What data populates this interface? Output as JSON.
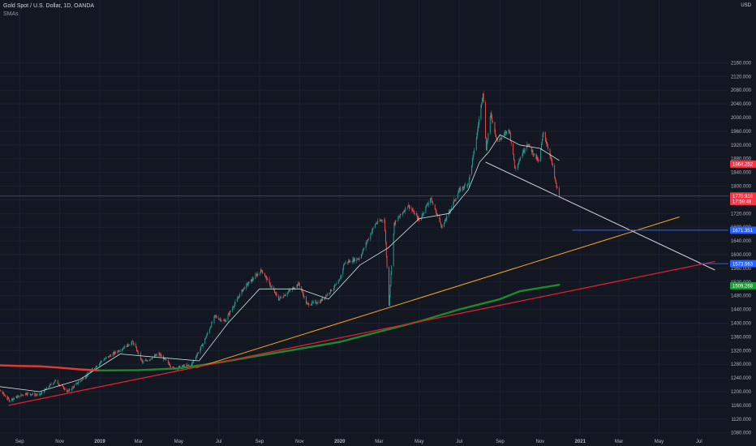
{
  "header": {
    "title": "Gold Spot / U.S. Dollar, 1D, OANDA",
    "indicator": "SMAs",
    "currency": "USD"
  },
  "colors": {
    "background": "#131722",
    "grid": "#1c2030",
    "axis_text": "#b2b5be",
    "candle_up": "#26a69a",
    "candle_down": "#ef5350",
    "sma_fast": "#c8e6e0",
    "sma_red": "#e53935",
    "sma_green": "#1b8a2e",
    "trend_white": "#d1d4dc",
    "trend_orange": "#f5a623",
    "trend_red": "#e01e2b",
    "hline_blue": "#2962ff",
    "label_red": "#f23645",
    "label_blue": "#2962ff",
    "label_green": "#1e9e3a"
  },
  "chart_data": {
    "type": "line",
    "title": "Gold Spot / U.S. Dollar, 1D, OANDA",
    "xlabel": "",
    "ylabel": "",
    "ylim": [
      1070,
      2170
    ],
    "grid": true,
    "x_ticks": [
      "Sep",
      "Nov",
      "2019",
      "Mar",
      "May",
      "Jul",
      "Sep",
      "Nov",
      "2020",
      "Mar",
      "May",
      "Jul",
      "Sep",
      "Nov",
      "2021",
      "Mar",
      "May",
      "Jul"
    ],
    "x_tick_dates": [
      "2018-09",
      "2018-11",
      "2019-01",
      "2019-03",
      "2019-05",
      "2019-07",
      "2019-09",
      "2019-11",
      "2020-01",
      "2020-03",
      "2020-05",
      "2020-07",
      "2020-09",
      "2020-11",
      "2021-01",
      "2021-03",
      "2021-05",
      "2021-07"
    ],
    "y_ticks": [
      1080,
      1120,
      1160,
      1200,
      1240,
      1280,
      1320,
      1360,
      1400,
      1440,
      1480,
      1520,
      1560,
      1600,
      1640,
      1680,
      1720,
      1760,
      1800,
      1840,
      1880,
      1920,
      1960,
      2000,
      2040,
      2080,
      2120,
      2160
    ],
    "price_path": [
      [
        "2018-07-10",
        1250
      ],
      [
        "2018-08-16",
        1175
      ],
      [
        "2018-09-10",
        1195
      ],
      [
        "2018-10-01",
        1190
      ],
      [
        "2018-10-25",
        1232
      ],
      [
        "2018-11-13",
        1200
      ],
      [
        "2018-12-10",
        1245
      ],
      [
        "2019-01-04",
        1290
      ],
      [
        "2019-02-20",
        1345
      ],
      [
        "2019-03-07",
        1285
      ],
      [
        "2019-04-01",
        1310
      ],
      [
        "2019-04-23",
        1268
      ],
      [
        "2019-05-20",
        1278
      ],
      [
        "2019-06-07",
        1340
      ],
      [
        "2019-06-25",
        1420
      ],
      [
        "2019-07-10",
        1405
      ],
      [
        "2019-08-07",
        1500
      ],
      [
        "2019-09-04",
        1555
      ],
      [
        "2019-09-30",
        1470
      ],
      [
        "2019-10-31",
        1515
      ],
      [
        "2019-11-12",
        1455
      ],
      [
        "2019-12-02",
        1463
      ],
      [
        "2019-12-31",
        1520
      ],
      [
        "2020-01-08",
        1575
      ],
      [
        "2020-01-31",
        1590
      ],
      [
        "2020-02-24",
        1690
      ],
      [
        "2020-03-09",
        1705
      ],
      [
        "2020-03-16",
        1455
      ],
      [
        "2020-03-24",
        1690
      ],
      [
        "2020-04-14",
        1745
      ],
      [
        "2020-05-01",
        1700
      ],
      [
        "2020-05-18",
        1765
      ],
      [
        "2020-06-05",
        1680
      ],
      [
        "2020-06-30",
        1785
      ],
      [
        "2020-07-15",
        1810
      ],
      [
        "2020-07-27",
        1940
      ],
      [
        "2020-08-06",
        2075
      ],
      [
        "2020-08-11",
        1910
      ],
      [
        "2020-08-18",
        2010
      ],
      [
        "2020-08-28",
        1930
      ],
      [
        "2020-09-15",
        1965
      ],
      [
        "2020-09-24",
        1850
      ],
      [
        "2020-10-12",
        1925
      ],
      [
        "2020-10-30",
        1870
      ],
      [
        "2020-11-06",
        1958
      ],
      [
        "2020-11-17",
        1885
      ],
      [
        "2020-11-25",
        1805
      ],
      [
        "2020-11-30",
        1770
      ]
    ],
    "series": [
      {
        "name": "",
        "role": "fast-sma",
        "points": [
          [
            "2018-08-01",
            1215
          ],
          [
            "2018-10-01",
            1200
          ],
          [
            "2018-12-01",
            1235
          ],
          [
            "2019-02-01",
            1310
          ],
          [
            "2019-04-01",
            1300
          ],
          [
            "2019-06-01",
            1290
          ],
          [
            "2019-07-15",
            1400
          ],
          [
            "2019-09-01",
            1500
          ],
          [
            "2019-11-01",
            1500
          ],
          [
            "2019-12-15",
            1470
          ],
          [
            "2020-02-01",
            1570
          ],
          [
            "2020-03-15",
            1620
          ],
          [
            "2020-05-01",
            1705
          ],
          [
            "2020-06-15",
            1720
          ],
          [
            "2020-07-15",
            1790
          ],
          [
            "2020-08-01",
            1870
          ],
          [
            "2020-08-15",
            1900
          ],
          [
            "2020-09-01",
            1950
          ],
          [
            "2020-10-01",
            1920
          ],
          [
            "2020-11-01",
            1910
          ],
          [
            "2020-11-30",
            1875
          ]
        ]
      },
      {
        "name": "",
        "role": "slow-sma-red",
        "points": [
          [
            "2018-07-01",
            1278
          ],
          [
            "2018-08-01",
            1277
          ],
          [
            "2018-09-01",
            1275
          ],
          [
            "2018-10-01",
            1274
          ],
          [
            "2018-11-01",
            1270
          ],
          [
            "2018-12-01",
            1265
          ],
          [
            "2019-01-01",
            1262
          ]
        ]
      },
      {
        "name": "",
        "role": "slow-sma-green",
        "points": [
          [
            "2019-01-01",
            1262
          ],
          [
            "2019-03-01",
            1263
          ],
          [
            "2019-05-01",
            1268
          ],
          [
            "2019-07-01",
            1285
          ],
          [
            "2019-09-01",
            1305
          ],
          [
            "2019-11-01",
            1325
          ],
          [
            "2020-01-01",
            1345
          ],
          [
            "2020-03-01",
            1375
          ],
          [
            "2020-05-01",
            1405
          ],
          [
            "2020-07-01",
            1440
          ],
          [
            "2020-09-01",
            1470
          ],
          [
            "2020-10-01",
            1493
          ],
          [
            "2020-11-30",
            1512
          ]
        ]
      }
    ],
    "trendlines": [
      {
        "role": "white",
        "from": [
          "2020-08-10",
          1870
        ],
        "to": [
          "2021-07-25",
          1555
        ]
      },
      {
        "role": "orange",
        "from": [
          "2019-05-28",
          1270
        ],
        "to": [
          "2021-06-01",
          1710
        ]
      },
      {
        "role": "red",
        "from": [
          "2018-08-15",
          1160
        ],
        "to": [
          "2021-07-25",
          1580
        ]
      }
    ],
    "horizontal_lines": [
      {
        "role": "gray",
        "value": 1770.916
      },
      {
        "role": "blue",
        "value": 1671.351,
        "from": "2020-12-20"
      },
      {
        "role": "blue",
        "value": 1573.563,
        "from": "2021-07-01"
      }
    ],
    "price_labels": [
      {
        "text": "1864.252",
        "value": 1864.252,
        "role": "red"
      },
      {
        "text": "1770.916",
        "value": 1770.916,
        "role": "red"
      },
      {
        "text": "17:59:48",
        "value": 1755,
        "role": "red-countdown"
      },
      {
        "text": "1671.351",
        "value": 1671.351,
        "role": "blue"
      },
      {
        "text": "1573.563",
        "value": 1573.563,
        "role": "blue"
      },
      {
        "text": "1509.268",
        "value": 1509.268,
        "role": "green"
      }
    ]
  }
}
